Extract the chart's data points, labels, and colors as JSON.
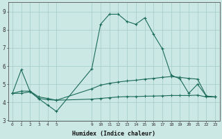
{
  "xlabel": "Humidex (Indice chaleur)",
  "ylabel": "",
  "background_color": "#cce8e4",
  "grid_color": "#aacfcc",
  "line_color": "#1a6b5a",
  "hours": [
    0,
    1,
    2,
    3,
    4,
    5,
    9,
    10,
    11,
    12,
    13,
    14,
    15,
    16,
    17,
    18,
    19,
    20,
    21,
    22,
    23
  ],
  "line1": [
    4.5,
    5.8,
    4.6,
    4.2,
    3.85,
    3.5,
    5.85,
    8.3,
    8.85,
    8.85,
    8.45,
    8.3,
    8.65,
    7.75,
    6.95,
    5.5,
    5.3,
    4.5,
    5.0,
    4.35,
    4.3
  ],
  "line2": [
    4.5,
    4.62,
    4.62,
    4.3,
    4.22,
    4.12,
    4.75,
    4.95,
    5.05,
    5.12,
    5.18,
    5.22,
    5.28,
    5.32,
    5.38,
    5.42,
    5.38,
    5.32,
    5.28,
    4.35,
    4.3
  ],
  "line3": [
    4.5,
    4.5,
    4.58,
    4.22,
    4.15,
    4.12,
    4.18,
    4.22,
    4.26,
    4.3,
    4.32,
    4.32,
    4.34,
    4.35,
    4.36,
    4.38,
    4.38,
    4.38,
    4.4,
    4.3,
    4.3
  ],
  "ylim": [
    3.0,
    9.5
  ],
  "yticks": [
    3,
    4,
    5,
    6,
    7,
    8,
    9
  ],
  "xtick_positions": [
    0,
    1,
    2,
    3,
    4,
    5,
    9,
    10,
    11,
    12,
    13,
    14,
    15,
    16,
    17,
    18,
    19,
    20,
    21,
    22,
    23
  ],
  "xtick_labels": [
    "0",
    "1",
    "2",
    "3",
    "4",
    "5",
    "9",
    "10",
    "11",
    "12",
    "13",
    "14",
    "15",
    "16",
    "17",
    "18",
    "19",
    "20",
    "21",
    "22",
    "23"
  ],
  "figsize": [
    3.2,
    2.0
  ],
  "dpi": 100
}
